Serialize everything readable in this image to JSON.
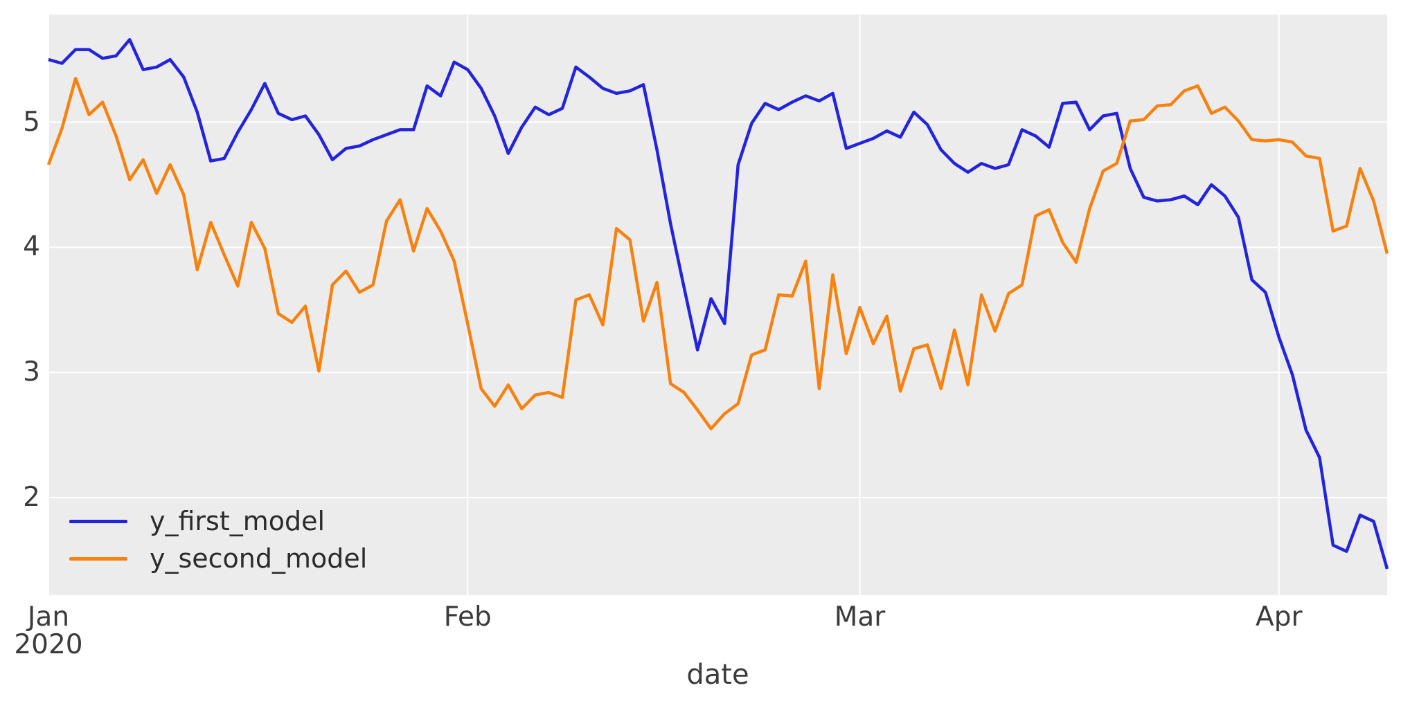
{
  "style": {
    "figure_bg": "#ffffff",
    "plot_bg": "#ececec",
    "grid_color": "#ffffff",
    "tick_text_color": "#3b3b3b",
    "series1_color": "#2424da",
    "series2_color": "#f8820f"
  },
  "chart_data": {
    "type": "line",
    "title": "",
    "xlabel": "date",
    "ylabel": "",
    "grid": true,
    "legend_position": "lower-left",
    "x_axis": {
      "start_year_label": "2020",
      "tick_labels": [
        "Jan",
        "Feb",
        "Mar",
        "Apr"
      ],
      "tick_days": [
        0,
        31,
        60,
        91
      ],
      "total_days": 99,
      "unit": "day"
    },
    "y_axis": {
      "ticks": [
        2,
        3,
        4,
        5
      ],
      "ylim": [
        1.22,
        5.86
      ]
    },
    "series": [
      {
        "name": "y_first_model",
        "color": "#2424da",
        "values": [
          5.5,
          5.47,
          5.58,
          5.58,
          5.51,
          5.53,
          5.66,
          5.42,
          5.44,
          5.5,
          5.36,
          5.08,
          4.69,
          4.71,
          4.92,
          5.1,
          5.31,
          5.07,
          5.02,
          5.05,
          4.9,
          4.7,
          4.79,
          4.81,
          4.86,
          4.9,
          4.94,
          4.94,
          5.29,
          5.21,
          5.48,
          5.42,
          5.27,
          5.05,
          4.75,
          4.96,
          5.12,
          5.06,
          5.11,
          5.44,
          5.36,
          5.27,
          5.23,
          5.25,
          5.3,
          4.78,
          4.19,
          3.68,
          3.18,
          3.59,
          3.39,
          4.66,
          4.99,
          5.15,
          5.1,
          5.16,
          5.21,
          5.17,
          5.23,
          4.79,
          4.83,
          4.87,
          4.93,
          4.88,
          5.08,
          4.98,
          4.78,
          4.67,
          4.6,
          4.67,
          4.63,
          4.66,
          4.94,
          4.89,
          4.8,
          5.15,
          5.16,
          4.94,
          5.05,
          5.07,
          4.63,
          4.4,
          4.37,
          4.38,
          4.41,
          4.34,
          4.5,
          4.41,
          4.24,
          3.74,
          3.64,
          3.28,
          2.98,
          2.54,
          2.32,
          1.62,
          1.57,
          1.86,
          1.81,
          1.43
        ]
      },
      {
        "name": "y_second_model",
        "color": "#f8820f",
        "values": [
          4.66,
          4.95,
          5.35,
          5.06,
          5.16,
          4.89,
          4.54,
          4.7,
          4.43,
          4.66,
          4.42,
          3.82,
          4.2,
          3.94,
          3.69,
          4.2,
          3.99,
          3.47,
          3.4,
          3.53,
          3.01,
          3.7,
          3.81,
          3.64,
          3.7,
          4.21,
          4.38,
          3.97,
          4.31,
          4.13,
          3.89,
          3.39,
          2.87,
          2.73,
          2.9,
          2.71,
          2.82,
          2.84,
          2.8,
          3.58,
          3.62,
          3.38,
          4.15,
          4.06,
          3.41,
          3.72,
          2.91,
          2.84,
          2.7,
          2.55,
          2.67,
          2.75,
          3.14,
          3.18,
          3.62,
          3.61,
          3.89,
          2.87,
          3.78,
          3.15,
          3.52,
          3.23,
          3.45,
          2.85,
          3.19,
          3.22,
          2.87,
          3.34,
          2.9,
          3.62,
          3.33,
          3.63,
          3.7,
          4.25,
          4.3,
          4.04,
          3.88,
          4.31,
          4.61,
          4.67,
          5.01,
          5.02,
          5.13,
          5.14,
          5.25,
          5.29,
          5.07,
          5.12,
          5.01,
          4.86,
          4.85,
          4.86,
          4.84,
          4.73,
          4.71,
          4.13,
          4.17,
          4.63,
          4.37,
          3.95
        ]
      }
    ]
  }
}
